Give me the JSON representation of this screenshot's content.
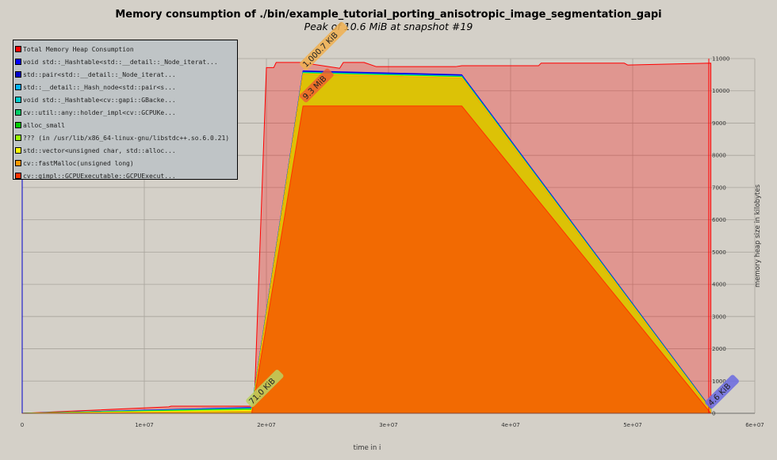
{
  "chart_data": {
    "type": "area",
    "title": "Memory consumption of ./bin/example_tutorial_porting_anisotropic_image_segmentation_gapi",
    "subtitle": "Peak of 10.6 MiB at snapshot #19",
    "xlabel": "time in i",
    "ylabel": "memory heap size in kilobytes",
    "xlim": [
      0,
      60000000
    ],
    "ylim": [
      0,
      11000
    ],
    "x_ticks": [
      {
        "value": 0,
        "label": "0"
      },
      {
        "value": 10000000,
        "label": "1e+07"
      },
      {
        "value": 20000000,
        "label": "2e+07"
      },
      {
        "value": 30000000,
        "label": "3e+07"
      },
      {
        "value": 40000000,
        "label": "4e+07"
      },
      {
        "value": 50000000,
        "label": "5e+07"
      },
      {
        "value": 60000000,
        "label": "6e+07"
      }
    ],
    "y_ticks": [
      0,
      1000,
      2000,
      3000,
      4000,
      5000,
      6000,
      7000,
      8000,
      9000,
      10000,
      11000
    ],
    "grid": true,
    "legend_position": "top-left",
    "series": [
      {
        "name": "Total Memory Heap Consumption",
        "color": "#ff0000",
        "x": [
          0,
          12000000,
          12200000,
          18800000,
          19000000,
          20000000,
          20600000,
          20800000,
          22800000,
          26000000,
          26300000,
          28000000,
          29000000,
          35500000,
          36000000,
          42300000,
          42500000,
          49300000,
          49600000,
          56400000,
          56400000
        ],
        "y": [
          0,
          200,
          220,
          220,
          200,
          10720,
          10720,
          10880,
          10880,
          10700,
          10880,
          10880,
          10750,
          10750,
          10780,
          10780,
          10860,
          10860,
          10800,
          10860,
          0
        ]
      },
      {
        "name": "void std::_Hashtable<std::__detail::_Node_iterat...",
        "color": "#0000ff",
        "x": [
          0,
          18800000,
          23000000,
          36000000,
          56400000
        ],
        "y": [
          0,
          180,
          10620,
          10500,
          150
        ]
      },
      {
        "name": "std::pair<std::__detail::_Node_iterat...",
        "color": "#0000cc",
        "x": [
          0,
          18800000,
          23000000,
          36000000,
          56400000
        ],
        "y": [
          0,
          170,
          10600,
          10480,
          140
        ]
      },
      {
        "name": "std::__detail::_Hash_node<std::pair<s...",
        "color": "#00b3ff",
        "x": [
          0,
          18800000,
          23000000,
          36000000,
          56400000
        ],
        "y": [
          0,
          160,
          10580,
          10460,
          130
        ]
      },
      {
        "name": "void std::_Hashtable<cv::gapi::GBacke...",
        "color": "#00cccc",
        "x": [
          0,
          18800000,
          23000000,
          36000000,
          56400000
        ],
        "y": [
          0,
          150,
          10570,
          10450,
          125
        ]
      },
      {
        "name": "cv::util::any::holder_impl<cv::GCPUKe...",
        "color": "#00cc66",
        "x": [
          0,
          18800000,
          23000000,
          36000000,
          56400000
        ],
        "y": [
          0,
          140,
          10560,
          10440,
          120
        ]
      },
      {
        "name": "alloc_small",
        "color": "#00cc00",
        "x": [
          0,
          18800000,
          23000000,
          36000000,
          56400000
        ],
        "y": [
          0,
          130,
          10550,
          10430,
          115
        ]
      },
      {
        "name": "??? (in /usr/lib/x86_64-linux-gnu/libstdc++.so.6.0.21)",
        "color": "#99ff00",
        "x": [
          0,
          18800000,
          23000000,
          36000000,
          56400000
        ],
        "y": [
          0,
          110,
          10540,
          10420,
          110
        ]
      },
      {
        "name": "std::vector<unsigned char, std::alloc...",
        "color": "#ffff00",
        "x": [
          0,
          18800000,
          23000000,
          36000000,
          56400000
        ],
        "y": [
          0,
          90,
          10530,
          10410,
          100
        ]
      },
      {
        "name": "cv::fastMalloc(unsigned long)",
        "color": "#ff9900",
        "x": [
          0,
          18800000,
          23000000,
          36000000,
          56400000
        ],
        "y": [
          0,
          60,
          10520,
          10400,
          95
        ]
      },
      {
        "name": "cv::gimpl::GCPUExecutable::GCPUExecut...",
        "color": "#ff3300",
        "x": [
          0,
          18800000,
          23000000,
          36000000,
          56400000
        ],
        "y": [
          0,
          0,
          9530,
          9530,
          0
        ]
      }
    ],
    "annotations": [
      {
        "text": "1,000.7 KiB",
        "x": 23200000,
        "y": 10700,
        "color": "#f0b050"
      },
      {
        "text": "9.3 MiB",
        "x": 23200000,
        "y": 9700,
        "color": "#ee6030"
      },
      {
        "text": "71.0 KiB",
        "x": 18800000,
        "y": 250,
        "color": "#bbd060"
      },
      {
        "text": "4.6 KiB",
        "x": 56400000,
        "y": 200,
        "color": "#6a6ae0"
      }
    ]
  }
}
